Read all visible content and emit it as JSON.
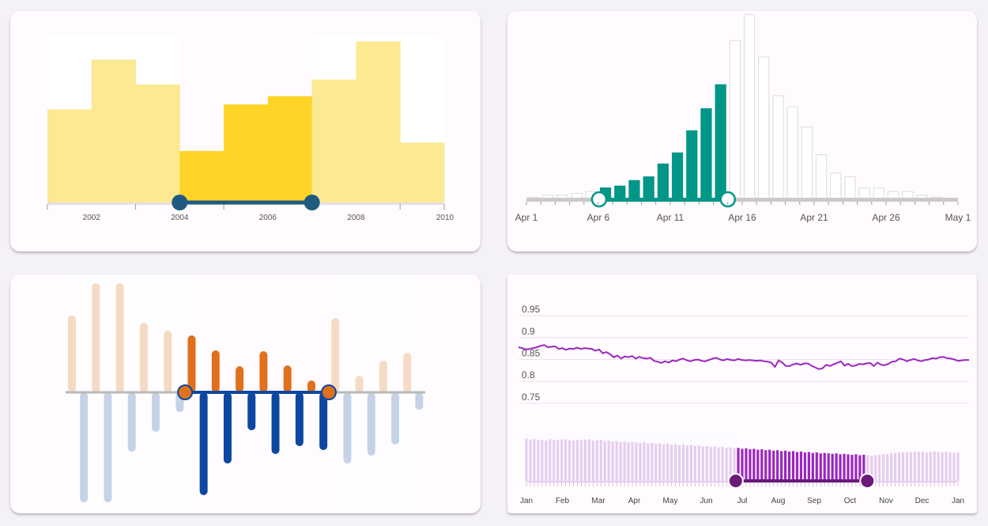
{
  "colors": {
    "yellow_light": "#fde992",
    "yellow_strong": "#ffd426",
    "slate": "#1f5a80",
    "teal": "#009688",
    "orange": "#e0701c",
    "orange_light": "#f5dbc4",
    "blue": "#0d47a1",
    "blue_light": "#c5d3e8",
    "purple": "#9b27c0",
    "purple_dark": "#6a1b7a",
    "purple_light": "#e6cdee"
  },
  "chart_data": [
    {
      "type": "bar",
      "x_ticks": [
        "2002",
        "2004",
        "2006",
        "2008",
        "2010"
      ],
      "x": [
        2001,
        2002,
        2003,
        2004,
        2005,
        2006,
        2007,
        2008,
        2009
      ],
      "values": [
        56,
        86,
        71,
        31,
        59,
        64,
        74,
        97,
        36
      ],
      "ylim": [
        0,
        100
      ],
      "selected_range": [
        2004,
        2007
      ]
    },
    {
      "type": "bar",
      "x_ticks": [
        "Apr 1",
        "Apr 6",
        "Apr 11",
        "Apr 16",
        "Apr 21",
        "Apr 26",
        "May 1"
      ],
      "values": [
        1,
        2,
        2,
        3,
        4,
        6,
        7,
        10,
        12,
        19,
        25,
        37,
        49,
        62,
        86,
        100,
        77,
        56,
        50,
        39,
        24,
        14,
        12,
        6,
        6,
        4,
        4,
        2,
        1
      ],
      "ylim": [
        0,
        100
      ],
      "selected_range": [
        "Apr 6",
        "Apr 15"
      ]
    },
    {
      "type": "bar",
      "positive": [
        97,
        138,
        138,
        88,
        78,
        72,
        53,
        33,
        52,
        34,
        15,
        94,
        21,
        40,
        50
      ],
      "negative": [
        -139,
        -139,
        -75,
        -50,
        -25,
        -130,
        -90,
        -48,
        -78,
        -68,
        -73,
        -90,
        -80,
        -66,
        -22
      ],
      "ylim": [
        -140,
        140
      ],
      "selected_range": [
        5,
        11
      ]
    },
    {
      "type": "line",
      "y_ticks": [
        "0.95",
        "0.9",
        "0.85",
        "0.8",
        "0.75"
      ],
      "ylim": [
        0.73,
        0.97
      ],
      "values": [
        0.878,
        0.876,
        0.873,
        0.874,
        0.876,
        0.878,
        0.881,
        0.883,
        0.878,
        0.879,
        0.88,
        0.874,
        0.876,
        0.872,
        0.875,
        0.874,
        0.877,
        0.874,
        0.876,
        0.875,
        0.874,
        0.87,
        0.873,
        0.864,
        0.867,
        0.862,
        0.855,
        0.859,
        0.852,
        0.857,
        0.855,
        0.858,
        0.852,
        0.856,
        0.853,
        0.852,
        0.854,
        0.847,
        0.845,
        0.842,
        0.846,
        0.843,
        0.848,
        0.846,
        0.85,
        0.852,
        0.848,
        0.846,
        0.849,
        0.85,
        0.847,
        0.846,
        0.849,
        0.852,
        0.854,
        0.85,
        0.848,
        0.851,
        0.849,
        0.848,
        0.851,
        0.849,
        0.848,
        0.849,
        0.848,
        0.847,
        0.848,
        0.846,
        0.845,
        0.843,
        0.833,
        0.848,
        0.843,
        0.835,
        0.835,
        0.839,
        0.841,
        0.838,
        0.841,
        0.841,
        0.836,
        0.832,
        0.828,
        0.83,
        0.838,
        0.835,
        0.839,
        0.842,
        0.846,
        0.836,
        0.84,
        0.835,
        0.836,
        0.84,
        0.839,
        0.841,
        0.842,
        0.835,
        0.843,
        0.838,
        0.837,
        0.84,
        0.845,
        0.846,
        0.852,
        0.85,
        0.846,
        0.849,
        0.851,
        0.848,
        0.846,
        0.849,
        0.85,
        0.853,
        0.852,
        0.855,
        0.856,
        0.853,
        0.852,
        0.85,
        0.847,
        0.848,
        0.849,
        0.849
      ],
      "navigator_x_ticks": [
        "Jan",
        "Feb",
        "Mar",
        "Apr",
        "May",
        "Jun",
        "Jul",
        "Aug",
        "Sep",
        "Oct",
        "Nov",
        "Dec",
        "Jan"
      ],
      "navigator_values": [
        92,
        90,
        91,
        89,
        90,
        88,
        91,
        90,
        89,
        90,
        91,
        89,
        88,
        90,
        89,
        90,
        91,
        88,
        89,
        90,
        87,
        88,
        86,
        87,
        85,
        86,
        84,
        85,
        84,
        83,
        84,
        82,
        83,
        81,
        82,
        80,
        81,
        79,
        80,
        78,
        79,
        77,
        78,
        76,
        77,
        75,
        76,
        74,
        75,
        73,
        74,
        72,
        73,
        71,
        72,
        70,
        71,
        69,
        70,
        68,
        69,
        67,
        68,
        66,
        67,
        65,
        66,
        64,
        65,
        63,
        64,
        62,
        63,
        61,
        62,
        60,
        61,
        60,
        59,
        60,
        58,
        59,
        58,
        57,
        58,
        56,
        57,
        56,
        55,
        56,
        57,
        58,
        59,
        60,
        61,
        62,
        63,
        62,
        63,
        64,
        63,
        64,
        62,
        63,
        64,
        63,
        62,
        63,
        62,
        61,
        62
      ],
      "selected_range": [
        "Jul",
        "Oct"
      ]
    }
  ]
}
